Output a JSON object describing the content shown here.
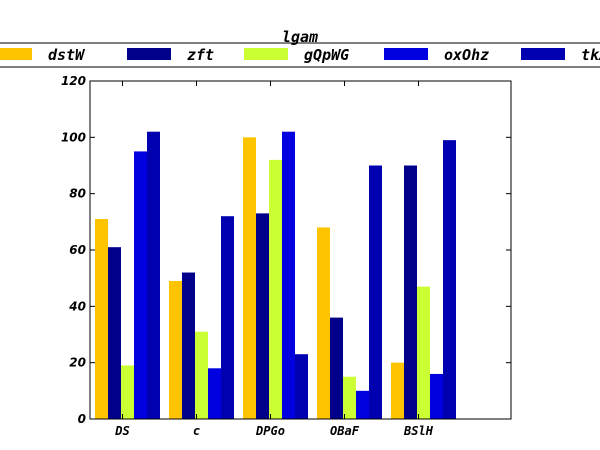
{
  "chart_data": {
    "type": "bar",
    "title": "lgam",
    "xlabel": "",
    "ylabel": "",
    "categories": [
      "DS",
      "c",
      "DPGo",
      "OBaF",
      "BSlH"
    ],
    "ylim": [
      0,
      120
    ],
    "yticks": [
      0,
      20,
      40,
      60,
      80,
      100,
      120
    ],
    "grid": false,
    "legend_position": "top",
    "series": [
      {
        "name": "dstW",
        "color": "#ffc400",
        "values": [
          71,
          49,
          100,
          68,
          20
        ]
      },
      {
        "name": "zft",
        "color": "#00008b",
        "values": [
          61,
          52,
          73,
          36,
          90
        ]
      },
      {
        "name": "gQpWG",
        "color": "#ccff33",
        "values": [
          19,
          31,
          92,
          15,
          47
        ]
      },
      {
        "name": "oxOhz",
        "color": "#0000e0",
        "values": [
          95,
          18,
          102,
          10,
          16
        ]
      },
      {
        "name": "tkX",
        "color": "#0000b0",
        "values": [
          102,
          72,
          23,
          90,
          99
        ]
      }
    ]
  }
}
